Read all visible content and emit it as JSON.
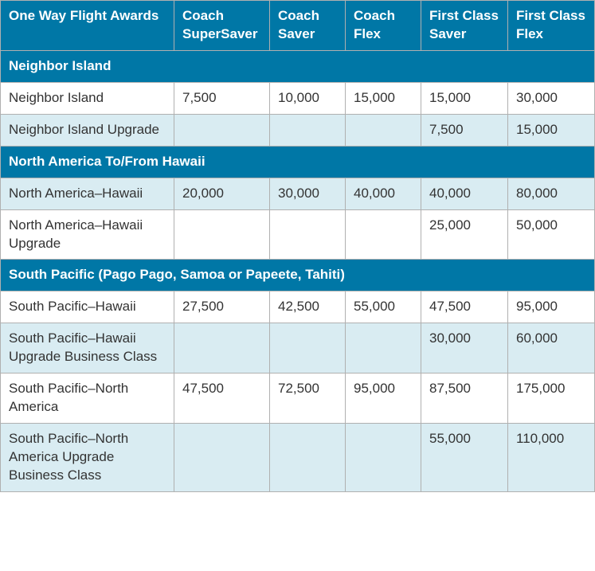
{
  "colors": {
    "header_bg": "#0077a6",
    "header_text": "#ffffff",
    "section_bg": "#0077a6",
    "section_text": "#ffffff",
    "row_white_bg": "#ffffff",
    "row_tint_bg": "#d9ecf2",
    "cell_text": "#333333",
    "border": "#b0b0b0"
  },
  "columns": [
    "One Way Flight Awards",
    "Coach SuperSaver",
    "Coach Saver",
    "Coach Flex",
    "First Class Saver",
    "First Class Flex"
  ],
  "sections": [
    {
      "title": "Neighbor Island",
      "rows": [
        {
          "label": "Neighbor Island",
          "values": [
            "7,500",
            "10,000",
            "15,000",
            "15,000",
            "30,000"
          ],
          "tint": false
        },
        {
          "label": "Neighbor Island Upgrade",
          "values": [
            "",
            "",
            "",
            "7,500",
            "15,000"
          ],
          "tint": true
        }
      ]
    },
    {
      "title": "North America To/From Hawaii",
      "rows": [
        {
          "label": "North America–Hawaii",
          "values": [
            "20,000",
            "30,000",
            "40,000",
            "40,000",
            "80,000"
          ],
          "tint": true
        },
        {
          "label": "North America–Hawaii Upgrade",
          "values": [
            "",
            "",
            "",
            "25,000",
            "50,000"
          ],
          "tint": false
        }
      ]
    },
    {
      "title": "South Pacific (Pago Pago, Samoa or Papeete, Tahiti)",
      "rows": [
        {
          "label": "South Pacific–Hawaii",
          "values": [
            "27,500",
            "42,500",
            "55,000",
            "47,500",
            "95,000"
          ],
          "tint": false
        },
        {
          "label": "South Pacific–Hawaii Upgrade Business Class",
          "values": [
            "",
            "",
            "",
            "30,000",
            "60,000"
          ],
          "tint": true
        },
        {
          "label": "South Pacific–North America",
          "values": [
            "47,500",
            "72,500",
            "95,000",
            "87,500",
            "175,000"
          ],
          "tint": false
        },
        {
          "label": "South Pacific–North America Upgrade Business Class",
          "values": [
            "",
            "",
            "",
            "55,000",
            "110,000"
          ],
          "tint": true
        }
      ]
    }
  ]
}
